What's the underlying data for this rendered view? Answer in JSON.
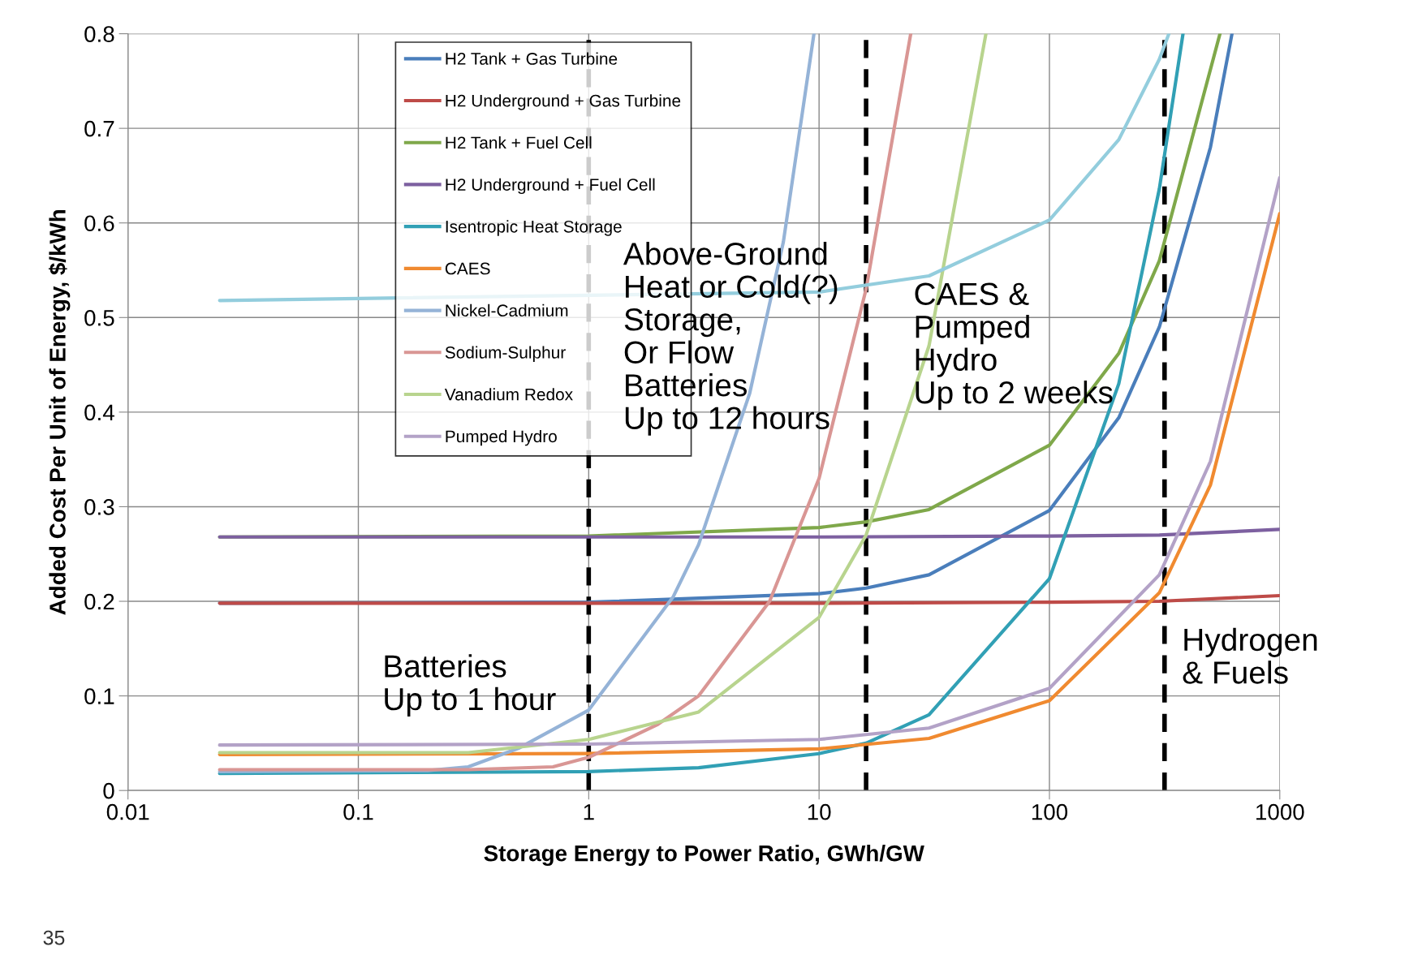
{
  "chart_data": {
    "type": "line",
    "xlabel": "Storage Energy to Power Ratio, GWh/GW",
    "ylabel": "Added Cost Per Unit of Energy, $/kWh",
    "log": "x",
    "xlim": [
      0.01,
      1000
    ],
    "xticks": [
      0.01,
      0.1,
      1,
      10,
      100,
      1000
    ],
    "ylim": [
      0,
      0.8
    ],
    "yticks": [
      0,
      0.1,
      0.2,
      0.3,
      0.4,
      0.5,
      0.6,
      0.7,
      0.8
    ],
    "grid": true,
    "legend": "top left",
    "marker": "none",
    "line_style": "solid",
    "series": [
      {
        "name": "H2 Tank + Gas Turbine",
        "color": "#4a7ebb",
        "x": [
          0.025,
          1,
          10,
          16,
          30,
          100,
          200,
          300,
          500,
          620
        ],
        "values": [
          0.198,
          0.199,
          0.208,
          0.214,
          0.228,
          0.296,
          0.394,
          0.49,
          0.68,
          0.8
        ]
      },
      {
        "name": "H2 Underground + Gas Turbine",
        "color": "#be4b48",
        "x": [
          0.025,
          1,
          10,
          100,
          300,
          1000
        ],
        "values": [
          0.198,
          0.198,
          0.198,
          0.199,
          0.2,
          0.206
        ]
      },
      {
        "name": "H2 Tank + Fuel Cell",
        "color": "#7fa84a",
        "x": [
          0.025,
          1,
          10,
          16,
          30,
          100,
          200,
          300,
          550
        ],
        "values": [
          0.268,
          0.269,
          0.278,
          0.284,
          0.297,
          0.365,
          0.462,
          0.56,
          0.8
        ]
      },
      {
        "name": "H2 Underground + Fuel Cell",
        "color": "#7d60a0",
        "x": [
          0.025,
          1,
          10,
          100,
          300,
          1000
        ],
        "values": [
          0.268,
          0.268,
          0.268,
          0.269,
          0.27,
          0.276
        ]
      },
      {
        "name": "Isentropic Heat Storage",
        "color": "#31a0b5",
        "x": [
          0.025,
          1,
          3,
          10,
          16,
          30,
          100,
          200,
          300,
          380
        ],
        "values": [
          0.018,
          0.02,
          0.024,
          0.039,
          0.05,
          0.08,
          0.224,
          0.43,
          0.636,
          0.8
        ]
      },
      {
        "name": "CAES",
        "color": "#f08a30",
        "x": [
          0.025,
          1,
          10,
          30,
          100,
          300,
          500,
          1000
        ],
        "values": [
          0.038,
          0.039,
          0.044,
          0.055,
          0.095,
          0.209,
          0.323,
          0.61
        ]
      },
      {
        "name": "Nickel-Cadmium",
        "color": "#95b3d7",
        "x": [
          0.025,
          0.2,
          0.3,
          0.5,
          1,
          2.33,
          3,
          5,
          7,
          9.5
        ],
        "values": [
          0.02,
          0.021,
          0.025,
          0.045,
          0.085,
          0.205,
          0.26,
          0.42,
          0.58,
          0.8
        ]
      },
      {
        "name": "Sodium-Sulphur",
        "color": "#d99694",
        "x": [
          0.025,
          0.3,
          0.7,
          1,
          2,
          3,
          6.1,
          10,
          16,
          25
        ],
        "values": [
          0.022,
          0.022,
          0.025,
          0.035,
          0.07,
          0.1,
          0.2,
          0.33,
          0.53,
          0.8
        ]
      },
      {
        "name": "Vanadium Redox",
        "color": "#b8d48e",
        "x": [
          0.025,
          0.3,
          1,
          3,
          10,
          16,
          30,
          53
        ],
        "values": [
          0.04,
          0.04,
          0.054,
          0.083,
          0.183,
          0.27,
          0.47,
          0.8
        ]
      },
      {
        "name": "Pumped Hydro",
        "color": "#b3a2c7",
        "x": [
          0.025,
          1,
          10,
          30,
          100,
          300,
          500,
          1000
        ],
        "values": [
          0.048,
          0.049,
          0.054,
          0.066,
          0.108,
          0.228,
          0.348,
          0.648
        ]
      },
      {
        "color": "#93cddd",
        "x": [
          0.025,
          10,
          30,
          100,
          200,
          300,
          330
        ],
        "values": [
          0.518,
          0.527,
          0.544,
          0.603,
          0.688,
          0.773,
          0.8
        ]
      }
    ],
    "ref_lines": [
      {
        "axis": "x",
        "value": 1,
        "color": "#000000",
        "line_style": "dashed"
      },
      {
        "axis": "x",
        "value": 16,
        "color": "#000000",
        "line_style": "dashed"
      },
      {
        "axis": "x",
        "value": 316,
        "color": "#000000",
        "line_style": "dashed"
      }
    ],
    "annotations": [
      "Batteries\nUp to 1 hour",
      "Above-Ground\nHeat or Cold(?)\nStorage,\nOr Flow\nBatteries\nUp to 12 hours",
      "CAES &\nPumped\nHydro\nUp to 2 weeks",
      "Hydrogen\n& Fuels",
      "35"
    ]
  }
}
